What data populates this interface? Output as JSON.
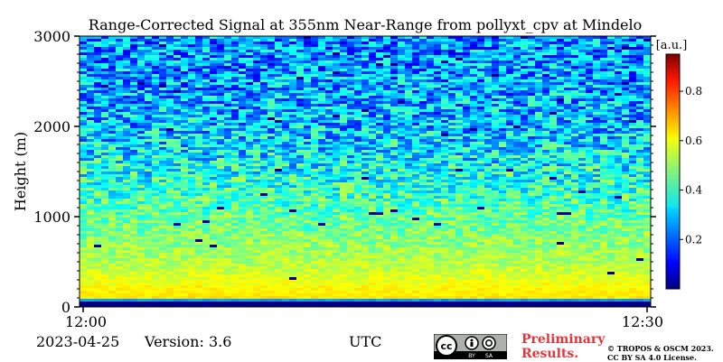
{
  "chart_data": {
    "type": "heatmap",
    "title": "Range-Corrected Signal at 355nm Near-Range from pollyxt_cpv at Mindelo",
    "ylabel": "Height (m)",
    "xlabel": "UTC",
    "x_ticks": [
      "12:00",
      "12:30"
    ],
    "x_range": [
      "12:00",
      "12:30"
    ],
    "y_ticks": [
      0,
      1000,
      2000,
      3000
    ],
    "ylim": [
      0,
      3000
    ],
    "colorbar": {
      "label": "[a.u.]",
      "ticks": [
        0.2,
        0.4,
        0.6,
        0.8
      ],
      "range": [
        0.0,
        0.95
      ],
      "colormap": "jet"
    },
    "profile": [
      {
        "height": 0,
        "value": 0.0
      },
      {
        "height": 60,
        "value": 0.0
      },
      {
        "height": 80,
        "value": 0.35
      },
      {
        "height": 100,
        "value": 0.62
      },
      {
        "height": 200,
        "value": 0.6
      },
      {
        "height": 500,
        "value": 0.52
      },
      {
        "height": 1000,
        "value": 0.45
      },
      {
        "height": 1500,
        "value": 0.37
      },
      {
        "height": 2000,
        "value": 0.3
      },
      {
        "height": 2500,
        "value": 0.27
      },
      {
        "height": 3000,
        "value": 0.25
      }
    ]
  },
  "footer": {
    "date": "2023-04-25",
    "version": "Version: 3.6",
    "preliminary": "Preliminary Results.",
    "copyright": "© TROPOS & OSCM 2023. CC BY SA 4.0 License.",
    "license_badge": {
      "text": "cc",
      "sub_left": "BY",
      "sub_right": "SA"
    }
  }
}
